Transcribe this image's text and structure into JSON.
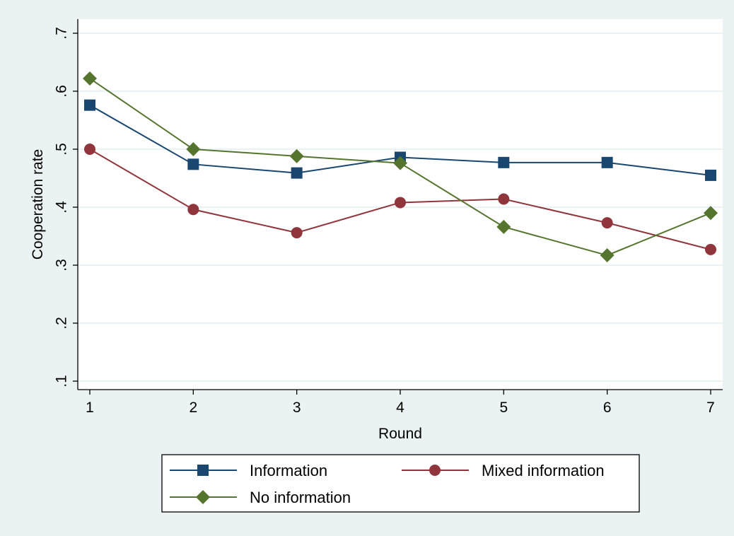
{
  "colors": {
    "outer_background": "#eaf2f3",
    "plot_background": "#ffffff",
    "gridline": "#eaf2f3",
    "axis": "#000000"
  },
  "chart_data": {
    "type": "line",
    "xlabel": "Round",
    "ylabel": "Cooperation rate",
    "x": [
      1,
      2,
      3,
      4,
      5,
      6,
      7
    ],
    "x_ticks": [
      1,
      2,
      3,
      4,
      5,
      6,
      7
    ],
    "x_tick_labels": [
      "1",
      "2",
      "3",
      "4",
      "5",
      "6",
      "7"
    ],
    "xlim": [
      1,
      7
    ],
    "y_ticks": [
      0.1,
      0.2,
      0.3,
      0.4,
      0.5,
      0.6,
      0.7
    ],
    "y_tick_labels": [
      ".1",
      ".2",
      ".3",
      ".4",
      ".5",
      ".6",
      ".7"
    ],
    "ylim": [
      0.1,
      0.7
    ],
    "grid": true,
    "legend_position": "bottom",
    "series": [
      {
        "name": "Information",
        "marker": "square",
        "color": "#1a476f",
        "values": [
          0.576,
          0.474,
          0.459,
          0.486,
          0.477,
          0.477,
          0.455
        ]
      },
      {
        "name": "Mixed information",
        "marker": "circle",
        "color": "#90353b",
        "values": [
          0.5,
          0.396,
          0.356,
          0.408,
          0.414,
          0.373,
          0.327
        ]
      },
      {
        "name": "No information",
        "marker": "diamond",
        "color": "#55752f",
        "values": [
          0.622,
          0.5,
          0.488,
          0.476,
          0.366,
          0.317,
          0.39
        ]
      }
    ]
  }
}
